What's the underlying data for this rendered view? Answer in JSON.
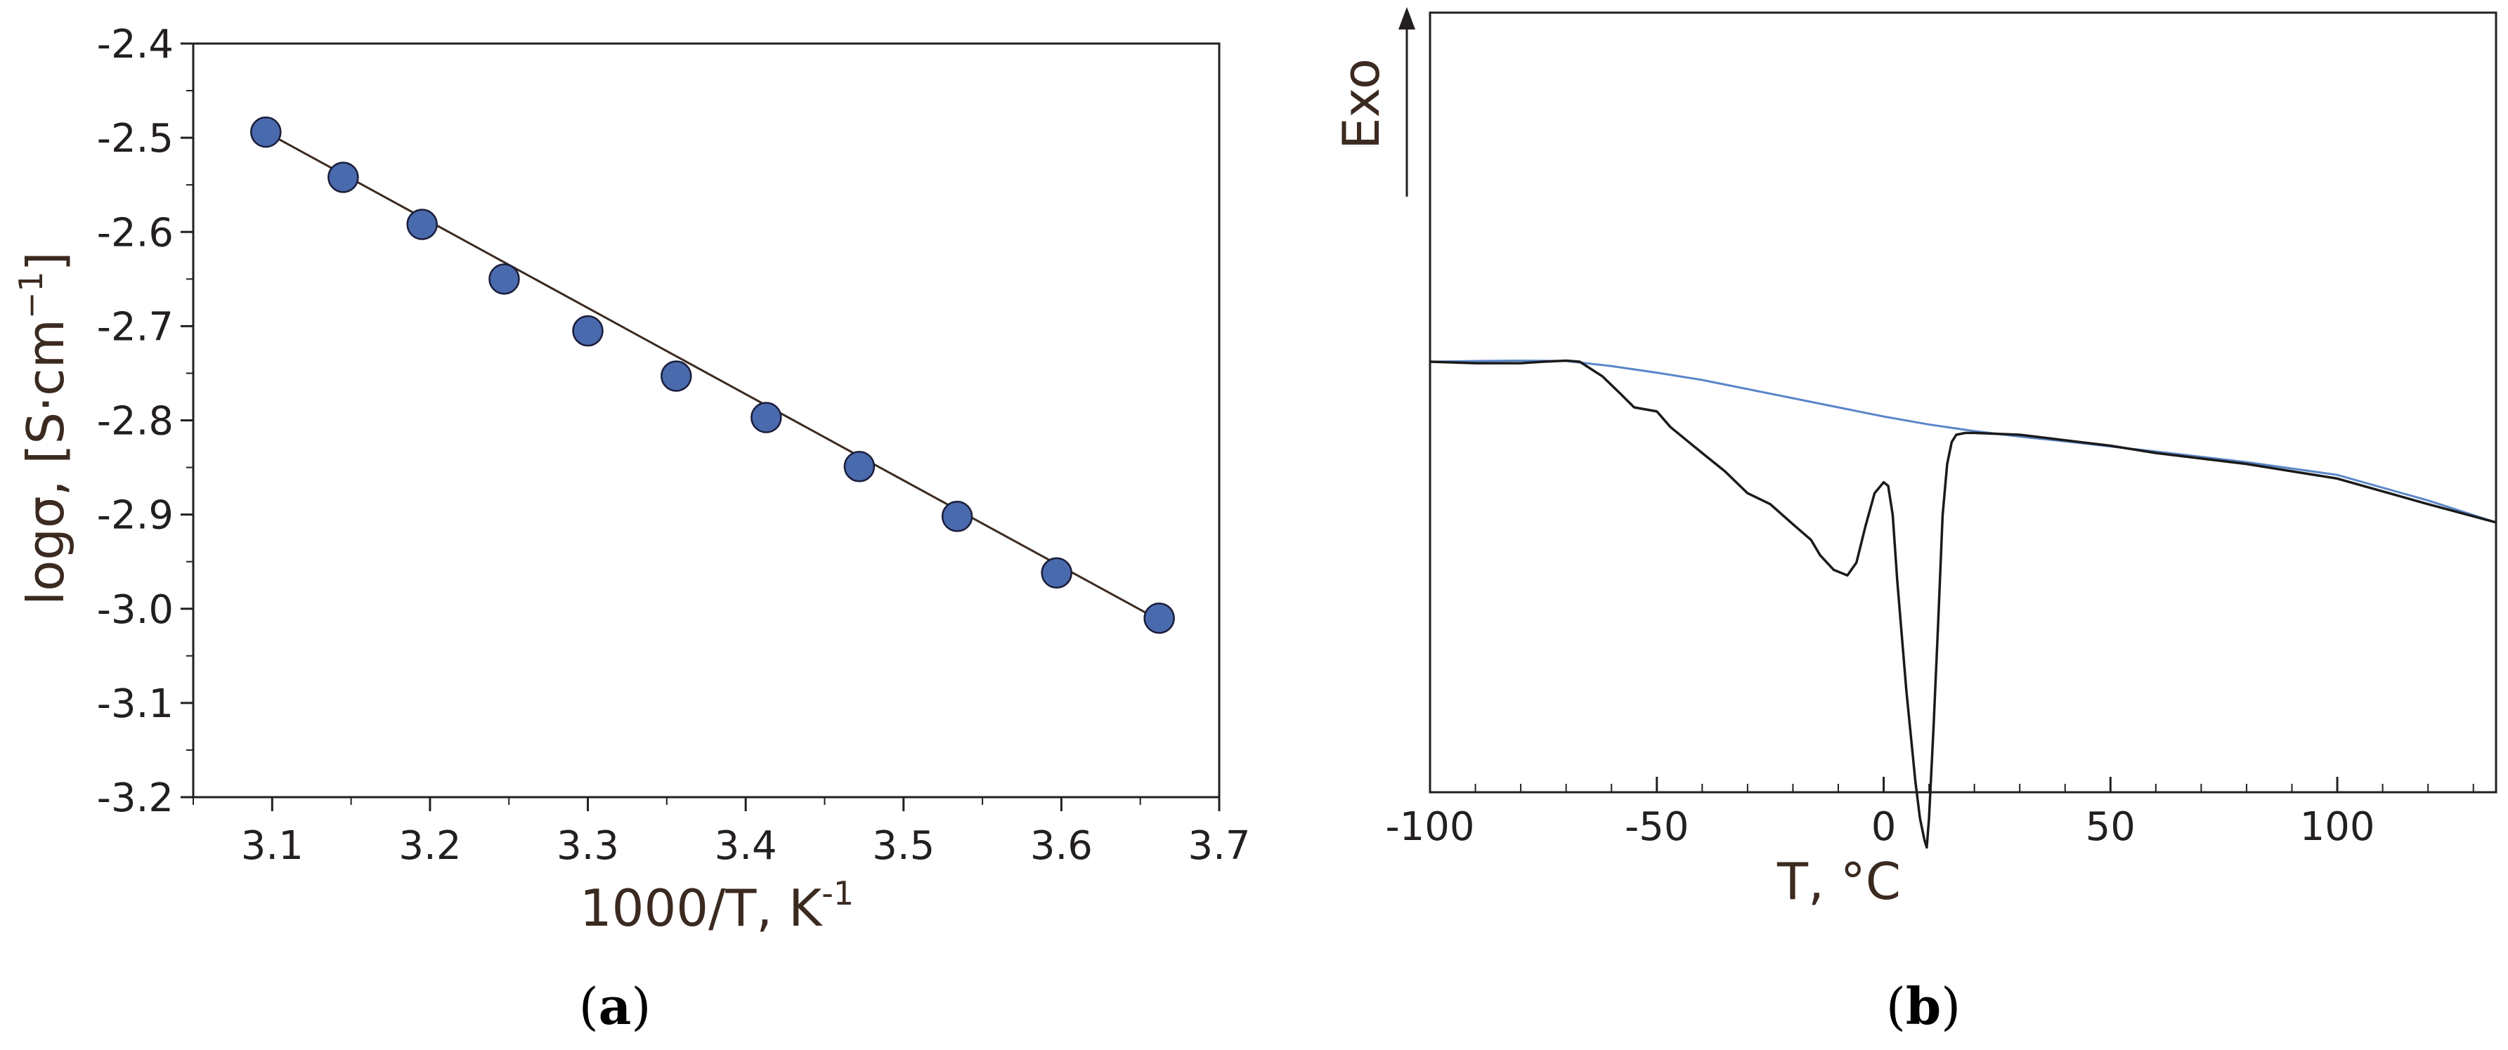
{
  "panels": {
    "a": {
      "label": "a"
    },
    "b": {
      "label": "b"
    }
  },
  "chart_data": [
    {
      "type": "scatter",
      "panel": "a",
      "xlabel_main": "1000/T, K",
      "xlabel_sup": "-1",
      "ylabel_main": "logσ, [S·cm",
      "ylabel_sup": "−1",
      "ylabel_close": "]",
      "xlim": [
        3.05,
        3.7
      ],
      "ylim": [
        -3.2,
        -2.4
      ],
      "xticks": [
        3.1,
        3.2,
        3.3,
        3.4,
        3.5,
        3.6,
        3.7
      ],
      "xtick_labels": [
        "3.1",
        "3.2",
        "3.3",
        "3.4",
        "3.5",
        "3.6",
        "3.7"
      ],
      "yticks": [
        -2.4,
        -2.5,
        -2.6,
        -2.7,
        -2.8,
        -2.9,
        -3.0,
        -3.1,
        -3.2
      ],
      "ytick_labels": [
        "-2.4",
        "-2.5",
        "-2.6",
        "-2.7",
        "-2.8",
        "-2.9",
        "-3.0",
        "-3.1",
        "-3.2"
      ],
      "grid": false,
      "series": [
        {
          "x": [
            3.096,
            3.145,
            3.195,
            3.247,
            3.3,
            3.356,
            3.413,
            3.472,
            3.534,
            3.597,
            3.662
          ],
          "y": [
            -2.494,
            -2.542,
            -2.592,
            -2.65,
            -2.705,
            -2.753,
            -2.797,
            -2.849,
            -2.902,
            -2.962,
            -3.01
          ]
        }
      ],
      "fit_line": {
        "x": [
          3.096,
          3.662
        ],
        "y": [
          -2.494,
          -3.012
        ]
      },
      "colors": {
        "marker_fill": "#4a6aae",
        "marker_stroke": "#1b1d3a",
        "line": "#3b2a20",
        "axis": "#231f20",
        "label": "#3b2a20"
      }
    },
    {
      "type": "line",
      "panel": "b",
      "xlabel": "T, °C",
      "ylabel": "Exo",
      "xlim": [
        -100,
        135
      ],
      "xticks": [
        -100,
        -50,
        0,
        50,
        100
      ],
      "xtick_labels": [
        "-100",
        "-50",
        "0",
        "50",
        "100"
      ],
      "grid": false,
      "series": [
        {
          "color": "#1a1a1a",
          "x": [
            -100,
            -90,
            -80,
            -75,
            -70,
            -67,
            -62,
            -58,
            -55,
            -50,
            -47,
            -40,
            -35,
            -30,
            -25,
            -20,
            -16,
            -14,
            -11,
            -8,
            -6,
            -4,
            -2,
            0,
            1,
            2,
            3,
            5,
            7,
            8,
            9,
            9.5,
            10,
            11,
            12,
            13,
            14,
            15,
            16,
            18,
            20,
            30,
            40,
            50,
            60,
            80,
            100,
            120,
            135
          ],
          "y": [
            0.0,
            -0.004,
            -0.004,
            0.0,
            0.003,
            0.0,
            -0.04,
            -0.088,
            -0.125,
            -0.136,
            -0.179,
            -0.25,
            -0.3,
            -0.36,
            -0.39,
            -0.445,
            -0.488,
            -0.53,
            -0.57,
            -0.585,
            -0.55,
            -0.45,
            -0.36,
            -0.33,
            -0.34,
            -0.42,
            -0.6,
            -0.9,
            -1.15,
            -1.25,
            -1.31,
            -1.33,
            -1.25,
            -1.0,
            -0.72,
            -0.42,
            -0.28,
            -0.22,
            -0.2,
            -0.195,
            -0.195,
            -0.2,
            -0.215,
            -0.23,
            -0.25,
            -0.28,
            -0.32,
            -0.39,
            -0.44
          ]
        },
        {
          "color": "#5b86c8",
          "x": [
            -100,
            -90,
            -80,
            -70,
            -60,
            -50,
            -40,
            -30,
            -20,
            -10,
            0,
            10,
            20,
            30,
            40,
            50,
            60,
            80,
            100,
            120,
            135
          ],
          "y": [
            0.0,
            0.002,
            0.003,
            0.002,
            -0.012,
            -0.03,
            -0.05,
            -0.075,
            -0.1,
            -0.125,
            -0.15,
            -0.172,
            -0.19,
            -0.205,
            -0.218,
            -0.232,
            -0.246,
            -0.275,
            -0.31,
            -0.38,
            -0.44
          ]
        }
      ],
      "colors": {
        "axis": "#231f20",
        "label": "#231f20"
      }
    }
  ]
}
